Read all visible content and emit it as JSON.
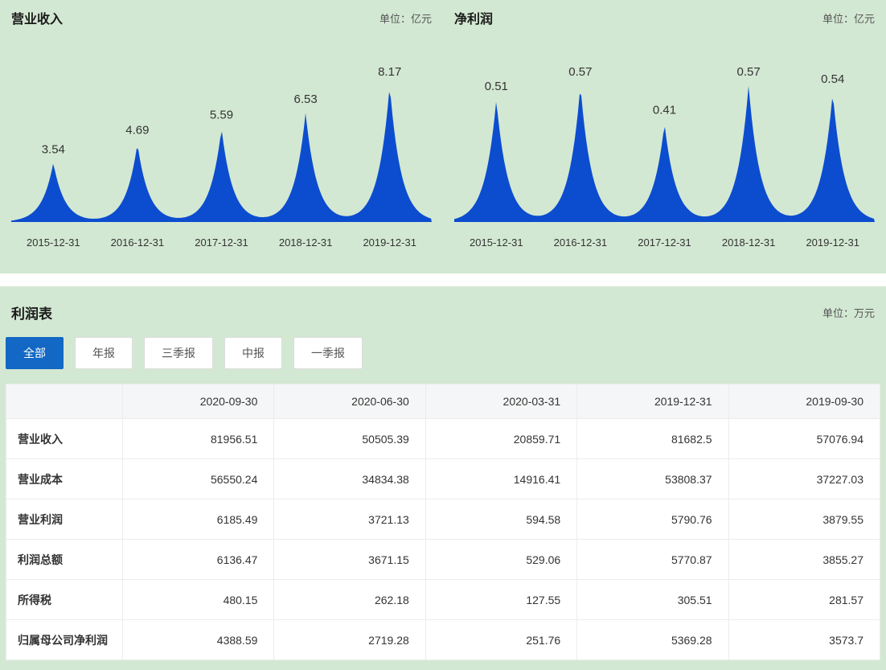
{
  "chart_data": [
    {
      "type": "area",
      "title": "营业收入",
      "unit_label": "单位：亿元",
      "categories": [
        "2015-12-31",
        "2016-12-31",
        "2017-12-31",
        "2018-12-31",
        "2019-12-31"
      ],
      "values": [
        3.54,
        4.69,
        5.59,
        6.53,
        8.17
      ],
      "xlabel": "",
      "ylabel": "",
      "legend": false,
      "grid": false,
      "color": "#0c4dcf"
    },
    {
      "type": "area",
      "title": "净利润",
      "unit_label": "单位：亿元",
      "categories": [
        "2015-12-31",
        "2016-12-31",
        "2017-12-31",
        "2018-12-31",
        "2019-12-31"
      ],
      "values": [
        0.51,
        0.57,
        0.41,
        0.57,
        0.54
      ],
      "xlabel": "",
      "ylabel": "",
      "legend": false,
      "grid": false,
      "color": "#0c4dcf"
    }
  ],
  "income_statement": {
    "title": "利润表",
    "unit_label": "单位：万元",
    "filters": [
      "全部",
      "年报",
      "三季报",
      "中报",
      "一季报"
    ],
    "active_filter": "全部",
    "columns": [
      "2020-09-30",
      "2020-06-30",
      "2020-03-31",
      "2019-12-31",
      "2019-09-30"
    ],
    "rows": [
      {
        "label": "营业收入",
        "values": [
          "81956.51",
          "50505.39",
          "20859.71",
          "81682.5",
          "57076.94"
        ]
      },
      {
        "label": "营业成本",
        "values": [
          "56550.24",
          "34834.38",
          "14916.41",
          "53808.37",
          "37227.03"
        ]
      },
      {
        "label": "营业利润",
        "values": [
          "6185.49",
          "3721.13",
          "594.58",
          "5790.76",
          "3879.55"
        ]
      },
      {
        "label": "利润总额",
        "values": [
          "6136.47",
          "3671.15",
          "529.06",
          "5770.87",
          "3855.27"
        ]
      },
      {
        "label": "所得税",
        "values": [
          "480.15",
          "262.18",
          "127.55",
          "305.51",
          "281.57"
        ]
      },
      {
        "label": "归属母公司净利润",
        "values": [
          "4388.59",
          "2719.28",
          "251.76",
          "5369.28",
          "3573.7"
        ]
      }
    ]
  },
  "colors": {
    "panel_green": "#d3e8d3",
    "chart_blue": "#0c4dcf",
    "active_button_blue": "#1268c4"
  }
}
